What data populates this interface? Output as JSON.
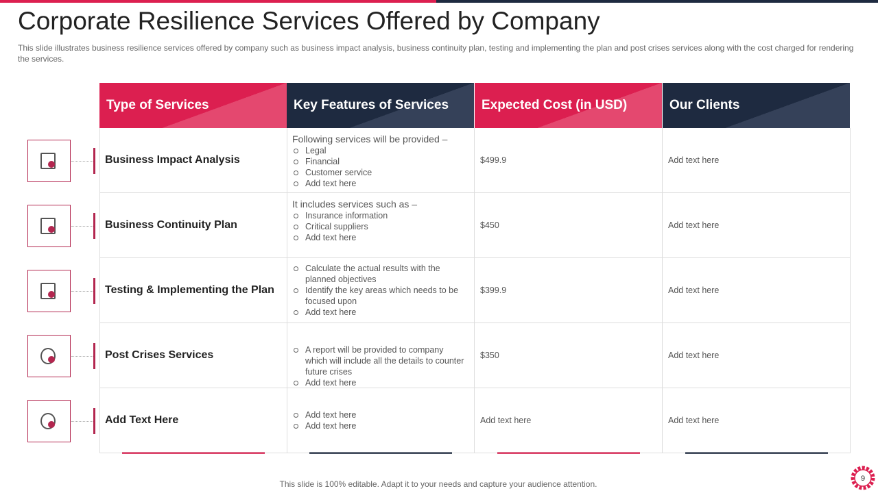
{
  "header": {
    "title": "Corporate Resilience Services Offered by Company",
    "subtitle": "This slide illustrates business resilience services offered  by company such as business impact analysis, business continuity plan, testing and implementing the plan and post crises services along with the cost charged for rendering the services."
  },
  "table": {
    "columns": [
      "Type of Services",
      "Key Features of Services",
      "Expected  Cost (in USD)",
      "Our Clients"
    ],
    "rows": [
      {
        "service": "Business Impact Analysis",
        "features": {
          "intro": "Following services will be provided –",
          "bullets": [
            "Legal",
            "Financial",
            "Customer service",
            "Add text here"
          ]
        },
        "cost": "$499.9",
        "clients": "Add text here"
      },
      {
        "service": "Business Continuity Plan",
        "features": {
          "intro": "It includes services such as –",
          "bullets": [
            "Insurance  information",
            "Critical suppliers",
            "Add text here"
          ]
        },
        "cost": "$450",
        "clients": "Add text here"
      },
      {
        "service": "Testing & Implementing the Plan",
        "features": {
          "bullets": [
            "Calculate  the actual results with the planned objectives",
            "Identify the key areas which needs to be focused upon",
            "Add text here"
          ]
        },
        "cost": "$399.9",
        "clients": "Add text here"
      },
      {
        "service": "Post Crises Services",
        "features": {
          "bullets": [
            "A report  will be provided  to company which will include all the details to counter future crises",
            "Add text here"
          ]
        },
        "cost": "$350",
        "clients": "Add text here"
      },
      {
        "service": "Add Text Here",
        "features": {
          "bullets": [
            "Add text here",
            "Add text here"
          ]
        },
        "cost": "Add text here",
        "clients": "Add text here"
      }
    ]
  },
  "footer": {
    "note": "This slide is 100% editable. Adapt it to your  needs and capture your audience attention.",
    "page_number": "9"
  }
}
